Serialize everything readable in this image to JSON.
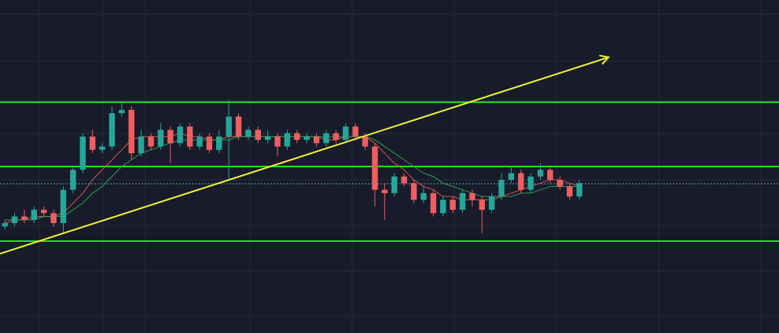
{
  "chart_data": {
    "type": "candlestick",
    "xlim": [
      -0.5,
      79.5
    ],
    "ylim": [
      0,
      100
    ],
    "up_color": "#26a69a",
    "down_color": "#ef5f61",
    "open": [
      32,
      33,
      35,
      34,
      37,
      36,
      33,
      43,
      49,
      59,
      55,
      56,
      66,
      67,
      54,
      59,
      56,
      61,
      57,
      62,
      56,
      59,
      55,
      59,
      65,
      59,
      61,
      58,
      59,
      56,
      60,
      58,
      59,
      57,
      60,
      58,
      62,
      59,
      56,
      43,
      42,
      47,
      45,
      40,
      42,
      36,
      40,
      37,
      42,
      40,
      37,
      41,
      46,
      48,
      43,
      47,
      49,
      46,
      44,
      41
    ],
    "high": [
      34,
      36,
      37,
      38,
      38,
      37,
      44,
      50,
      60,
      61,
      57,
      68,
      69,
      68,
      61,
      60,
      63,
      62,
      63,
      63,
      60,
      60,
      61,
      70,
      66,
      62,
      62,
      61,
      60,
      61,
      61,
      60,
      60,
      61,
      61,
      63,
      63,
      60,
      57,
      45,
      48,
      48,
      46,
      44,
      43,
      41,
      41,
      43,
      43,
      41,
      42,
      48,
      50,
      49,
      48,
      51,
      50,
      47,
      45,
      46
    ],
    "low": [
      31,
      32,
      33,
      33,
      35,
      32,
      30,
      42,
      48,
      54,
      54,
      55,
      65,
      52,
      53,
      55,
      55,
      51,
      56,
      55,
      55,
      54,
      54,
      46,
      58,
      58,
      57,
      57,
      53,
      55,
      57,
      57,
      56,
      56,
      57,
      57,
      58,
      55,
      38,
      34,
      41,
      44,
      39,
      39,
      35,
      35,
      36,
      36,
      38,
      30,
      36,
      40,
      45,
      42,
      42,
      46,
      45,
      43,
      40,
      40
    ],
    "close": [
      33,
      35,
      34,
      37,
      36,
      33,
      43,
      49,
      59,
      55,
      56,
      66,
      67,
      54,
      59,
      56,
      61,
      57,
      62,
      56,
      59,
      55,
      59,
      65,
      59,
      61,
      58,
      59,
      56,
      60,
      58,
      59,
      57,
      60,
      58,
      62,
      59,
      56,
      43,
      42,
      47,
      45,
      40,
      42,
      36,
      40,
      37,
      42,
      40,
      37,
      41,
      46,
      48,
      43,
      47,
      49,
      46,
      44,
      41,
      45
    ],
    "lines": [
      {
        "color": "#d9534f",
        "values": [
          33,
          34,
          34,
          35,
          35,
          35,
          36,
          39,
          42,
          46,
          49,
          52,
          55,
          58,
          59,
          59,
          59,
          59,
          60,
          59,
          59,
          58,
          58,
          59,
          59,
          59,
          59,
          59,
          59,
          59,
          59,
          59,
          59,
          58,
          58,
          59,
          59,
          59,
          57,
          54,
          51,
          49,
          46,
          44,
          43,
          41,
          41,
          40,
          40,
          40,
          40,
          41,
          42,
          43,
          44,
          45,
          46,
          46,
          45,
          44
        ]
      },
      {
        "color": "#2e9e4f",
        "values": [
          34,
          34,
          34,
          34,
          35,
          35,
          35,
          37,
          39,
          42,
          44,
          47,
          50,
          52,
          54,
          55,
          56,
          57,
          58,
          58,
          58,
          58,
          58,
          58,
          59,
          59,
          59,
          59,
          59,
          59,
          59,
          59,
          59,
          59,
          59,
          59,
          59,
          59,
          58,
          56,
          54,
          52,
          50,
          48,
          47,
          45,
          44,
          43,
          42,
          41,
          41,
          41,
          41,
          42,
          42,
          43,
          44,
          44,
          44,
          44
        ]
      }
    ],
    "levels": [
      {
        "value": 69.3,
        "color": "#22e022"
      },
      {
        "value": 50,
        "color": "#22e022"
      },
      {
        "value": 27.6,
        "color": "#22e022"
      }
    ],
    "price_line": {
      "value": 44.8,
      "color": "#3fb6c8"
    },
    "trendline": {
      "x": [
        -0.5,
        62
      ],
      "y": [
        23.8,
        82.8
      ],
      "color": "#f2f23a"
    }
  }
}
